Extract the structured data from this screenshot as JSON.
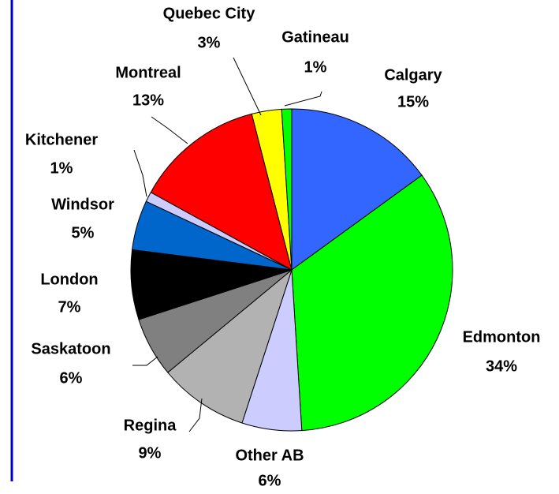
{
  "chart_data": {
    "type": "pie",
    "categories": [
      "Calgary",
      "Edmonton",
      "Other AB",
      "Regina",
      "Saskatoon",
      "London",
      "Windsor",
      "Kitchener",
      "Montreal",
      "Quebec City",
      "Gatineau"
    ],
    "values": [
      15,
      34,
      6,
      9,
      6,
      7,
      5,
      1,
      13,
      3,
      1
    ],
    "value_labels": [
      "15%",
      "34%",
      "6%",
      "9%",
      "6%",
      "7%",
      "5%",
      "1%",
      "13%",
      "3%",
      "1%"
    ],
    "colors": [
      "#3366ff",
      "#00ff00",
      "#ccccff",
      "#b2b2b2",
      "#808080",
      "#000000",
      "#0066cc",
      "#ccccff",
      "#ff0000",
      "#ffff00",
      "#00ff00"
    ]
  }
}
